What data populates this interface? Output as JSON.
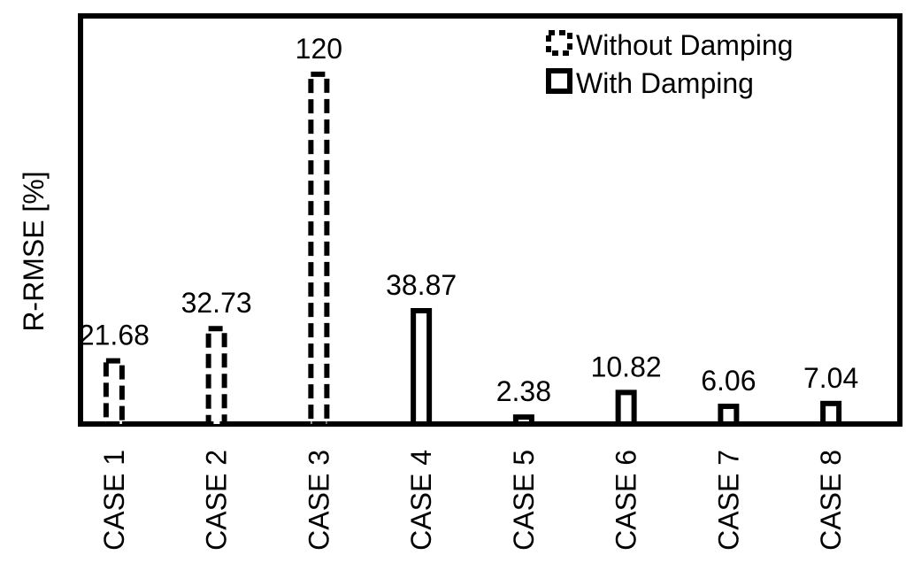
{
  "chart_data": {
    "type": "bar",
    "ylabel": "R-RMSE [%]",
    "categories": [
      "CASE 1",
      "CASE 2",
      "CASE 3",
      "CASE 4",
      "CASE 5",
      "CASE 6",
      "CASE 7",
      "CASE 8"
    ],
    "values": [
      21.68,
      32.73,
      120,
      38.87,
      2.38,
      10.82,
      6.06,
      7.04
    ],
    "value_labels": [
      "21.68",
      "32.73",
      "120",
      "38.87",
      "2.38",
      "10.82",
      "6.06",
      "7.04"
    ],
    "series_index": [
      0,
      0,
      0,
      1,
      1,
      1,
      1,
      1
    ],
    "series": [
      {
        "name": "Without Damping",
        "style": "dashed",
        "color": "#000000"
      },
      {
        "name": "With Damping",
        "style": "solid",
        "color": "#000000"
      }
    ],
    "ylim": [
      0,
      140
    ],
    "grid": false,
    "legend_position": "top-right"
  }
}
